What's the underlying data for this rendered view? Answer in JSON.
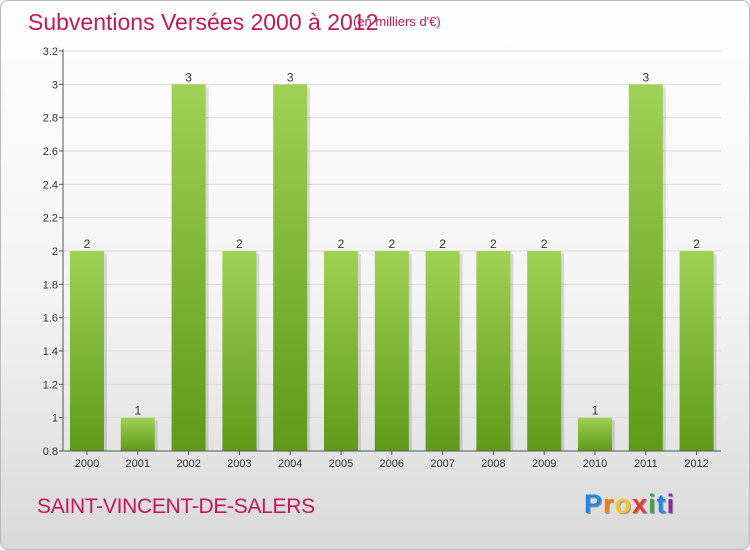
{
  "header": {
    "title": "Subventions Versées 2000 à 2012",
    "unit": "(en milliers d'€)"
  },
  "footer": {
    "commune": "SAINT-VINCENT-DE-SALERS"
  },
  "logo": {
    "letters": [
      "P",
      "r",
      "o",
      "x",
      "i",
      "t",
      "i"
    ],
    "colors": [
      "#1e88e5",
      "#f57c00",
      "#fbc02d",
      "#e53935",
      "#43a047",
      "#1e88e5",
      "#8e24aa"
    ]
  },
  "colors": {
    "bar_top": "#9fd155",
    "bar_bottom": "#5e9a18",
    "grid": "#dcdcdc",
    "axis": "#555555",
    "label": "#333333"
  },
  "chart_data": {
    "type": "bar",
    "categories": [
      "2000",
      "2001",
      "2002",
      "2003",
      "2004",
      "2005",
      "2006",
      "2007",
      "2008",
      "2009",
      "2010",
      "2011",
      "2012"
    ],
    "values": [
      2,
      1,
      3,
      2,
      3,
      2,
      2,
      2,
      2,
      2,
      1,
      3,
      2
    ],
    "ylim": [
      0.8,
      3.2
    ],
    "yticks": [
      "0.8",
      "1",
      "1.2",
      "1.4",
      "1.6",
      "1.8",
      "2",
      "2.2",
      "2.4",
      "2.6",
      "2.8",
      "3",
      "3.2"
    ],
    "grid": true,
    "data_labels": true
  }
}
